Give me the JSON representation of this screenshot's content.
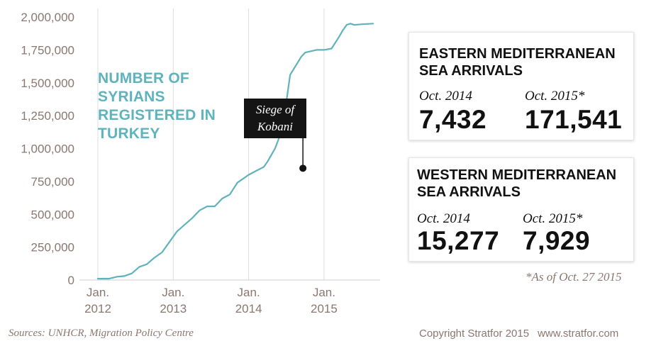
{
  "chart_data": {
    "type": "line",
    "title": "NUMBER OF SYRIANS REGISTERED IN TURKEY",
    "title_lines": [
      "NUMBER OF",
      "SYRIANS",
      "REGISTERED IN",
      "TURKEY"
    ],
    "xlabel": "",
    "ylabel": "",
    "ylim": [
      0,
      2000000
    ],
    "xlim": [
      2012.0,
      2015.65
    ],
    "y_ticks": [
      0,
      250000,
      500000,
      750000,
      1000000,
      1250000,
      1500000,
      1750000,
      2000000
    ],
    "y_tick_labels": [
      "0",
      "250,000",
      "500,000",
      "750,000",
      "1,000,000",
      "1,250,000",
      "1,500,000",
      "1,750,000",
      "2,000,000"
    ],
    "x_ticks": [
      {
        "value": 2012,
        "line1": "Jan.",
        "line2": "2012"
      },
      {
        "value": 2013,
        "line1": "Jan.",
        "line2": "2013"
      },
      {
        "value": 2014,
        "line1": "Jan.",
        "line2": "2014"
      },
      {
        "value": 2015,
        "line1": "Jan.",
        "line2": "2015"
      }
    ],
    "grid": "vertical-at-year-ticks",
    "series": [
      {
        "color": "#5fb3bd",
        "x": [
          2012.0,
          2012.15,
          2012.25,
          2012.35,
          2012.45,
          2012.55,
          2012.65,
          2012.75,
          2012.85,
          2012.95,
          2013.05,
          2013.15,
          2013.25,
          2013.35,
          2013.45,
          2013.55,
          2013.65,
          2013.75,
          2013.85,
          2013.95,
          2014.0,
          2014.1,
          2014.2,
          2014.25,
          2014.35,
          2014.45,
          2014.55,
          2014.7,
          2014.75,
          2014.9,
          2015.0,
          2015.1,
          2015.2,
          2015.25,
          2015.3,
          2015.35,
          2015.4,
          2015.5,
          2015.65
        ],
        "y": [
          10000,
          10000,
          25000,
          30000,
          50000,
          100000,
          120000,
          170000,
          210000,
          290000,
          370000,
          420000,
          470000,
          530000,
          560000,
          560000,
          620000,
          650000,
          740000,
          780000,
          800000,
          830000,
          860000,
          900000,
          1000000,
          1150000,
          1560000,
          1700000,
          1730000,
          1750000,
          1750000,
          1760000,
          1850000,
          1900000,
          1940000,
          1950000,
          1940000,
          1945000,
          1950000
        ]
      }
    ],
    "annotations": [
      {
        "text_lines": [
          "Siege of",
          "Kobani"
        ],
        "x": 2014.72,
        "y": 850000
      }
    ]
  },
  "cards": {
    "east": {
      "title_lines": [
        "EASTERN MEDITERRANEAN",
        "SEA ARRIVALS"
      ],
      "label_a": "Oct. 2014",
      "value_a": "7,432",
      "label_b": "Oct. 2015*",
      "value_b": "171,541"
    },
    "west": {
      "title_lines": [
        "WESTERN MEDITERRANEAN",
        "SEA ARRIVALS"
      ],
      "label_a": "Oct. 2014",
      "value_a": "15,277",
      "label_b": "Oct. 2015*",
      "value_b": "7,929"
    }
  },
  "footnote": "*As of Oct. 27 2015",
  "footer": {
    "sources": "Sources: UNHCR, Migration Policy Centre",
    "copyright": "Copyright Stratfor 2015",
    "website": "www.stratfor.com"
  },
  "colors": {
    "line": "#5fb3bd",
    "axis_text": "#8b7770",
    "annotation_bg": "#141414",
    "text": "#111111"
  }
}
